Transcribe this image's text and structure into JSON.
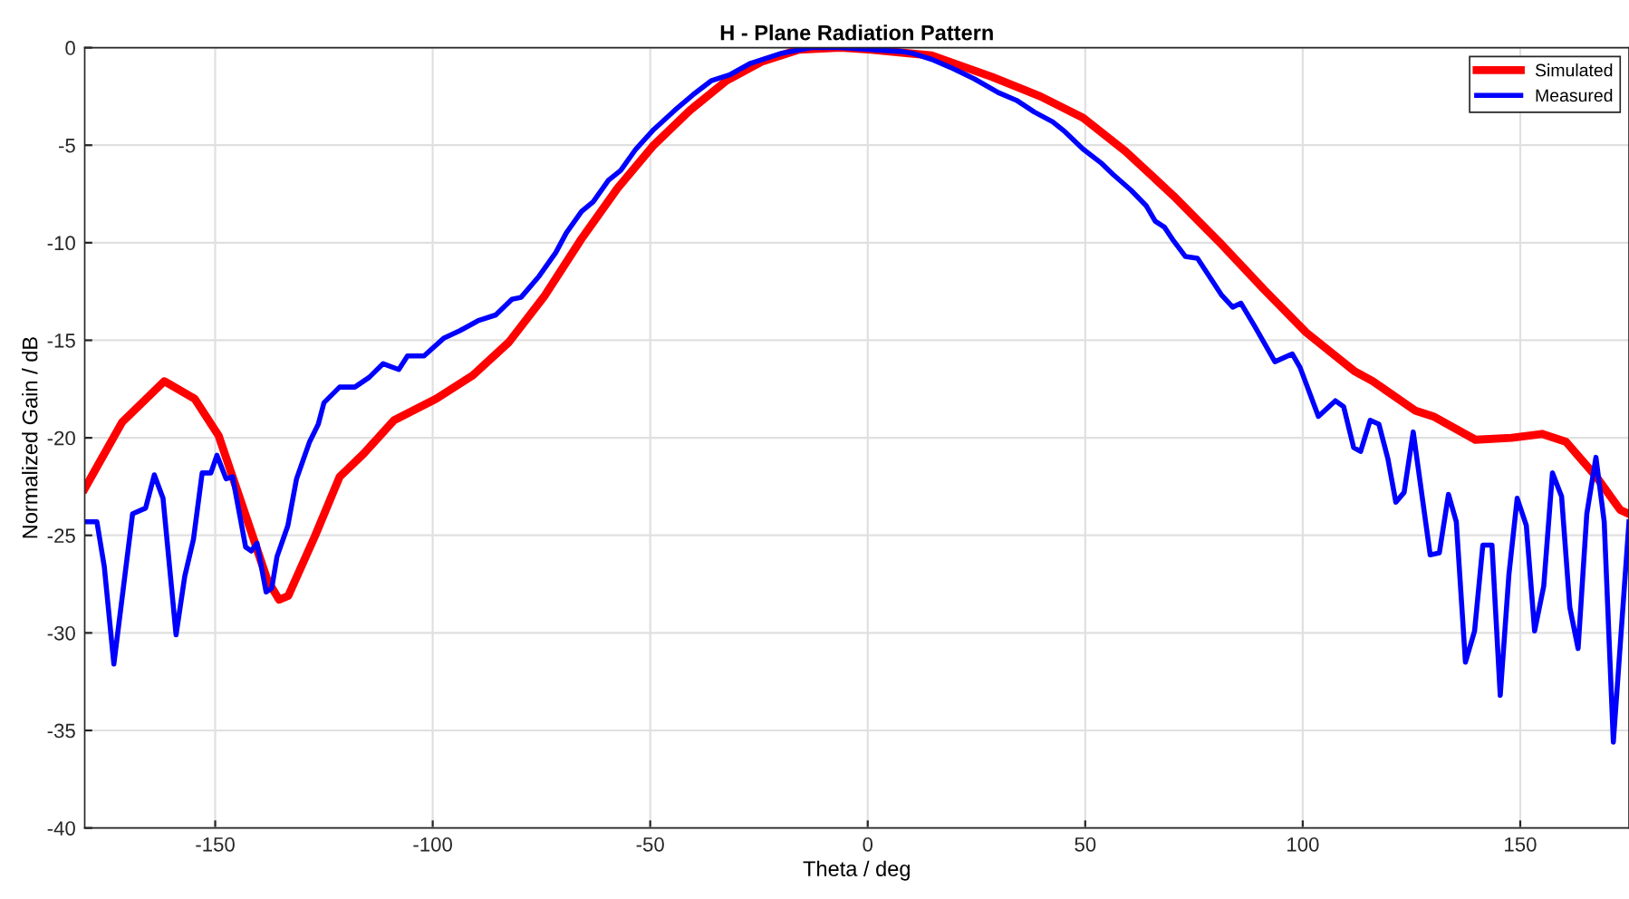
{
  "chart_data": {
    "type": "line",
    "title": "H - Plane Radiation Pattern",
    "xlabel": "Theta / deg",
    "ylabel": "Normalized Gain / dB",
    "xlim": [
      -180,
      175
    ],
    "ylim": [
      -40,
      0
    ],
    "xticks": [
      -150,
      -100,
      -50,
      0,
      50,
      100,
      150
    ],
    "yticks": [
      -40,
      -35,
      -30,
      -25,
      -20,
      -15,
      -10,
      -5,
      0
    ],
    "grid": true,
    "legend": "top right",
    "line_style": "solid",
    "marker": "none",
    "series": [
      {
        "name": "Simulated",
        "color": "#ff0000",
        "x": [
          -180,
          -171.4,
          -161.7,
          -154.7,
          -149.2,
          -142.2,
          -138,
          -135.3,
          -133.2,
          -127,
          -121.4,
          -115.8,
          -108.9,
          -99.2,
          -90.8,
          -82.5,
          -74.2,
          -65.8,
          -57.5,
          -49.2,
          -40.8,
          -32.5,
          -24.2,
          -15.8,
          -6.2,
          0.8,
          14.7,
          28.6,
          39.7,
          49.5,
          59.2,
          70.3,
          81.4,
          91.1,
          100.8,
          112,
          116.1,
          125.8,
          130,
          139.7,
          148,
          155,
          160.5,
          167.5,
          173,
          175
        ],
        "values": [
          -22.6,
          -19.2,
          -17.1,
          -18,
          -19.9,
          -24.5,
          -27.3,
          -28.3,
          -28.1,
          -25,
          -22,
          -20.8,
          -19.1,
          -18,
          -16.8,
          -15.1,
          -12.7,
          -9.8,
          -7.2,
          -5,
          -3.2,
          -1.7,
          -0.7,
          -0.1,
          0,
          -0.1,
          -0.4,
          -1.5,
          -2.5,
          -3.6,
          -5.3,
          -7.6,
          -10.1,
          -12.4,
          -14.6,
          -16.6,
          -17.1,
          -18.6,
          -18.9,
          -20.1,
          -20,
          -19.8,
          -20.2,
          -22,
          -23.7,
          -23.9
        ]
      },
      {
        "name": "Measured",
        "color": "#0000ff",
        "x": [
          -179.5,
          -177.2,
          -175.5,
          -173.3,
          -169,
          -166,
          -164,
          -162,
          -159,
          -157,
          -155,
          -153,
          -151,
          -149.6,
          -147.5,
          -146,
          -143,
          -141.7,
          -140.4,
          -138.3,
          -137,
          -135.8,
          -133.3,
          -131.3,
          -128.3,
          -126.3,
          -125,
          -121.4,
          -117.9,
          -114.6,
          -111.4,
          -107.8,
          -105.8,
          -102,
          -97.5,
          -93.7,
          -89.6,
          -85.5,
          -81.8,
          -79.7,
          -75.5,
          -71.7,
          -69.3,
          -65.8,
          -63.1,
          -59.6,
          -56.8,
          -53.3,
          -49.2,
          -44.3,
          -40.1,
          -36,
          -31.8,
          -26.9,
          -20,
          -13,
          -6.2,
          0.8,
          7.8,
          10.5,
          14.7,
          18.9,
          24.5,
          30,
          34.2,
          38.3,
          42.5,
          45.3,
          49.5,
          53.6,
          56.4,
          60.5,
          64,
          66.1,
          68.2,
          70.3,
          73,
          75.8,
          81.4,
          83.9,
          85.8,
          89,
          93.6,
          97.6,
          99.4,
          103.6,
          107.5,
          109.4,
          111.7,
          113.3,
          115.5,
          117.5,
          119.6,
          121.4,
          123.3,
          125.4,
          129.3,
          131.4,
          133.5,
          135.3,
          137.4,
          139.5,
          141.4,
          143.5,
          145.4,
          147.4,
          149.3,
          151.4,
          153.3,
          155.4,
          157.4,
          159.5,
          161.4,
          163.3,
          165.3,
          167.4,
          169.3,
          171.4,
          175
        ],
        "values": [
          -24.3,
          -24.3,
          -26.6,
          -31.6,
          -23.9,
          -23.6,
          -21.9,
          -23.1,
          -30.1,
          -27.1,
          -25.2,
          -21.8,
          -21.8,
          -20.9,
          -22.1,
          -22,
          -25.6,
          -25.8,
          -25.4,
          -27.9,
          -27.7,
          -26.1,
          -24.5,
          -22.1,
          -20.2,
          -19.3,
          -18.2,
          -17.4,
          -17.4,
          -16.9,
          -16.2,
          -16.5,
          -15.8,
          -15.8,
          -14.9,
          -14.5,
          -14,
          -13.7,
          -12.9,
          -12.8,
          -11.7,
          -10.5,
          -9.5,
          -8.4,
          -7.9,
          -6.8,
          -6.3,
          -5.2,
          -4.2,
          -3.2,
          -2.4,
          -1.7,
          -1.4,
          -0.8,
          -0.3,
          0,
          0,
          -0.1,
          -0.2,
          -0.3,
          -0.6,
          -1,
          -1.6,
          -2.3,
          -2.7,
          -3.3,
          -3.8,
          -4.3,
          -5.2,
          -5.9,
          -6.5,
          -7.3,
          -8.1,
          -8.9,
          -9.2,
          -9.9,
          -10.7,
          -10.8,
          -12.7,
          -13.3,
          -13.1,
          -14.3,
          -16.1,
          -15.7,
          -16.4,
          -18.9,
          -18.1,
          -18.4,
          -20.5,
          -20.7,
          -19.1,
          -19.3,
          -21.1,
          -23.3,
          -22.8,
          -19.7,
          -26,
          -25.9,
          -22.9,
          -24.3,
          -31.5,
          -29.9,
          -25.5,
          -25.5,
          -33.2,
          -27,
          -23.1,
          -24.5,
          -29.9,
          -27.6,
          -21.8,
          -23,
          -28.7,
          -30.8,
          -23.9,
          -21,
          -24.3,
          -35.6,
          -24.3
        ]
      }
    ]
  }
}
